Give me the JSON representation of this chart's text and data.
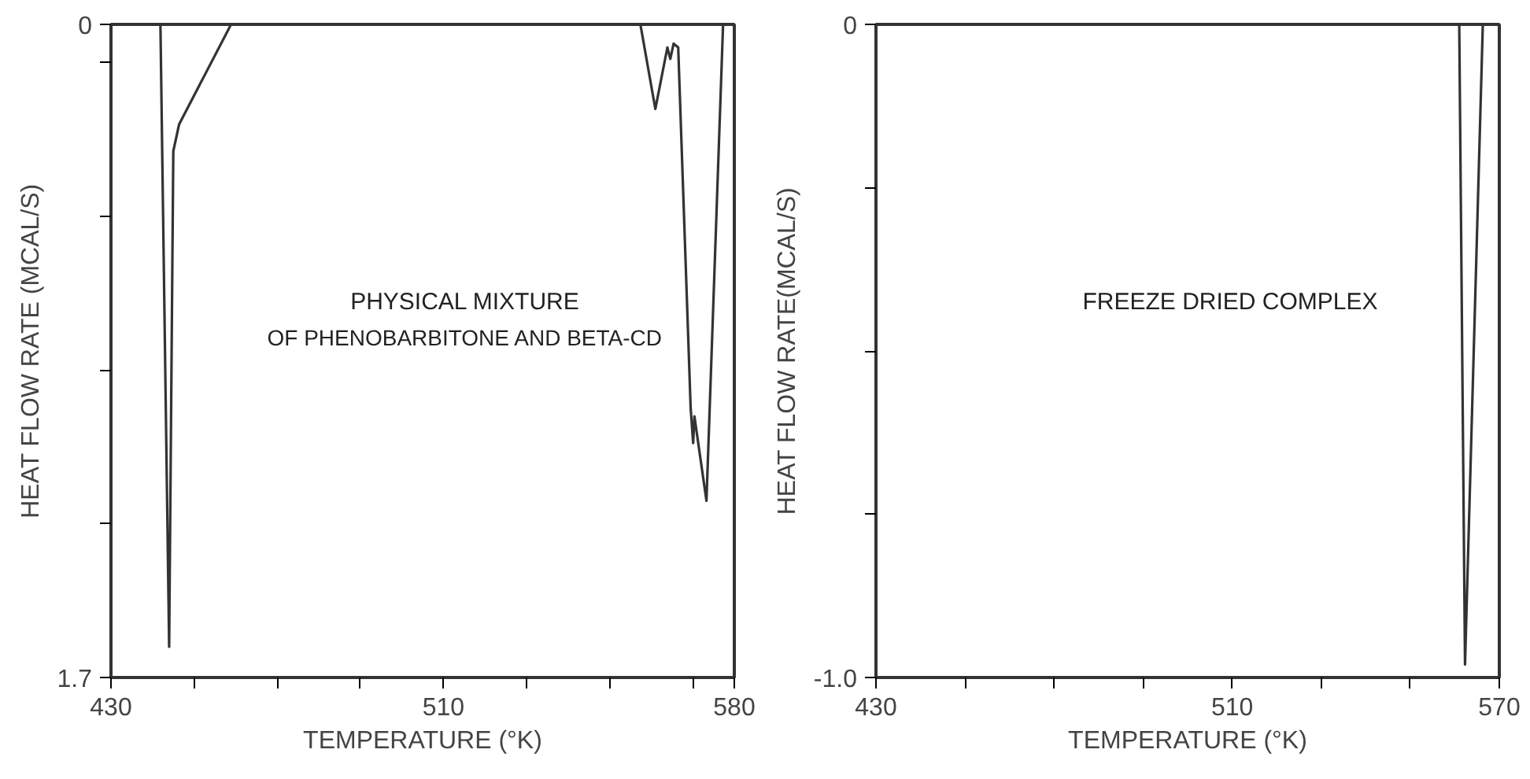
{
  "chart_data": [
    {
      "type": "line",
      "xlabel": "TEMPERATURE (°K)",
      "ylabel": "HEAT FLOW RATE (MCAL/S)",
      "annotations": [
        "PHYSICAL MIXTURE",
        "OF PHENOBARBITONE AND BETA-CD"
      ],
      "series": [
        {
          "color": "#333333",
          "x": [
            430,
            441.9,
            444.0,
            445.0,
            446.4,
            458.9,
            557.4,
            561.0,
            563.9,
            564.6,
            565.4,
            566.5,
            569.5,
            570.1,
            570.4,
            573.3,
            577.3,
            580
          ],
          "values": [
            0,
            0,
            1.62,
            0.33,
            0.26,
            0,
            0,
            0.22,
            0.06,
            0.09,
            0.05,
            0.06,
            1.0,
            1.09,
            1.02,
            1.24,
            0,
            0
          ]
        }
      ],
      "xlim": [
        430,
        580
      ],
      "ylim": [
        1.7,
        0
      ],
      "xticks": [
        430,
        {
          "value": 450,
          "label": null
        },
        {
          "value": 470,
          "label": null
        },
        {
          "value": 490,
          "label": null
        },
        510,
        {
          "value": 530,
          "label": null
        },
        {
          "value": 550,
          "label": null
        },
        {
          "value": 570,
          "label": null
        },
        580
      ],
      "yticks": [
        0,
        {
          "value": 0.1,
          "label": null
        },
        {
          "value": 0.5,
          "label": null
        },
        {
          "value": 0.9,
          "label": null
        },
        {
          "value": 1.3,
          "label": null
        },
        1.7
      ],
      "grid": false,
      "marker": "none",
      "line_style": "solid"
    },
    {
      "type": "line",
      "xlabel": "TEMPERATURE (°K)",
      "ylabel": "HEAT FLOW RATE(MCAL/S)",
      "annotations": [
        "FREEZE DRIED COMPLEX"
      ],
      "series": [
        {
          "color": "#333333",
          "x": [
            430,
            561.0,
            562.3,
            566.3,
            570
          ],
          "values": [
            0,
            0,
            -0.98,
            0,
            0
          ]
        }
      ],
      "xlim": [
        430,
        570
      ],
      "ylim": [
        -1.0,
        0
      ],
      "xticks": [
        430,
        {
          "value": 450,
          "label": null
        },
        {
          "value": 470,
          "label": null
        },
        {
          "value": 490,
          "label": null
        },
        510,
        {
          "value": 530,
          "label": null
        },
        {
          "value": 550,
          "label": null
        },
        570
      ],
      "yticks": [
        {
          "value": 0,
          "label": "0"
        },
        {
          "value": -0.25,
          "label": null
        },
        {
          "value": -0.5,
          "label": null
        },
        {
          "value": -0.75,
          "label": null
        },
        {
          "value": -1.0,
          "label": "-1.0"
        }
      ],
      "grid": false,
      "marker": "none",
      "line_style": "solid"
    }
  ]
}
